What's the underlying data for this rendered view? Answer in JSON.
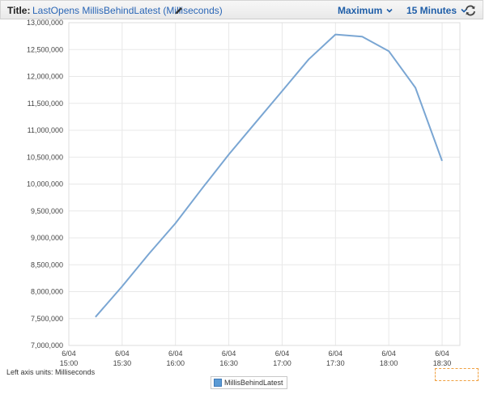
{
  "header": {
    "title_label": "Title:",
    "title_text": "LastOpens MillisBehindLatest (Milliseconds)",
    "statistic": "Maximum",
    "period": "15 Minutes",
    "icons": [
      "pencil-icon",
      "chevron-down-icon",
      "refresh-icon"
    ]
  },
  "footer": {
    "units_label": "Left axis units:",
    "units_value": "Milliseconds"
  },
  "colors": {
    "line": "#7aa6d3",
    "grid": "#e8e8e8",
    "link": "#2a66b6"
  },
  "chart_data": {
    "type": "line",
    "ylim": [
      7000000,
      13000000
    ],
    "y_ticks": [
      7000000,
      7500000,
      8000000,
      8500000,
      9000000,
      9500000,
      10000000,
      10500000,
      11000000,
      11500000,
      12000000,
      12500000,
      13000000
    ],
    "y_tick_labels": [
      "7,000,000",
      "7,500,000",
      "8,000,000",
      "8,500,000",
      "9,000,000",
      "9,500,000",
      "10,000,000",
      "10,500,000",
      "11,000,000",
      "11,500,000",
      "12,000,000",
      "12,500,000",
      "13,000,000"
    ],
    "x_ticks": [
      {
        "date": "6/04",
        "time": "15:00",
        "minutes": 900
      },
      {
        "date": "6/04",
        "time": "15:30",
        "minutes": 930
      },
      {
        "date": "6/04",
        "time": "16:00",
        "minutes": 960
      },
      {
        "date": "6/04",
        "time": "16:30",
        "minutes": 990
      },
      {
        "date": "6/04",
        "time": "17:00",
        "minutes": 1020
      },
      {
        "date": "6/04",
        "time": "17:30",
        "minutes": 1050
      },
      {
        "date": "6/04",
        "time": "18:00",
        "minutes": 1080
      },
      {
        "date": "6/04",
        "time": "18:30",
        "minutes": 1110
      }
    ],
    "series": [
      {
        "name": "MillisBehindLatest",
        "points": [
          {
            "minutes": 915,
            "value": 7530000
          },
          {
            "minutes": 930,
            "value": 8100000
          },
          {
            "minutes": 945,
            "value": 8700000
          },
          {
            "minutes": 960,
            "value": 9270000
          },
          {
            "minutes": 975,
            "value": 9920000
          },
          {
            "minutes": 990,
            "value": 10550000
          },
          {
            "minutes": 1005,
            "value": 11140000
          },
          {
            "minutes": 1020,
            "value": 11730000
          },
          {
            "minutes": 1035,
            "value": 12320000
          },
          {
            "minutes": 1050,
            "value": 12780000
          },
          {
            "minutes": 1065,
            "value": 12740000
          },
          {
            "minutes": 1080,
            "value": 12470000
          },
          {
            "minutes": 1095,
            "value": 11790000
          },
          {
            "minutes": 1110,
            "value": 10430000
          }
        ]
      }
    ],
    "grid": true,
    "legend": "bottom-center"
  }
}
